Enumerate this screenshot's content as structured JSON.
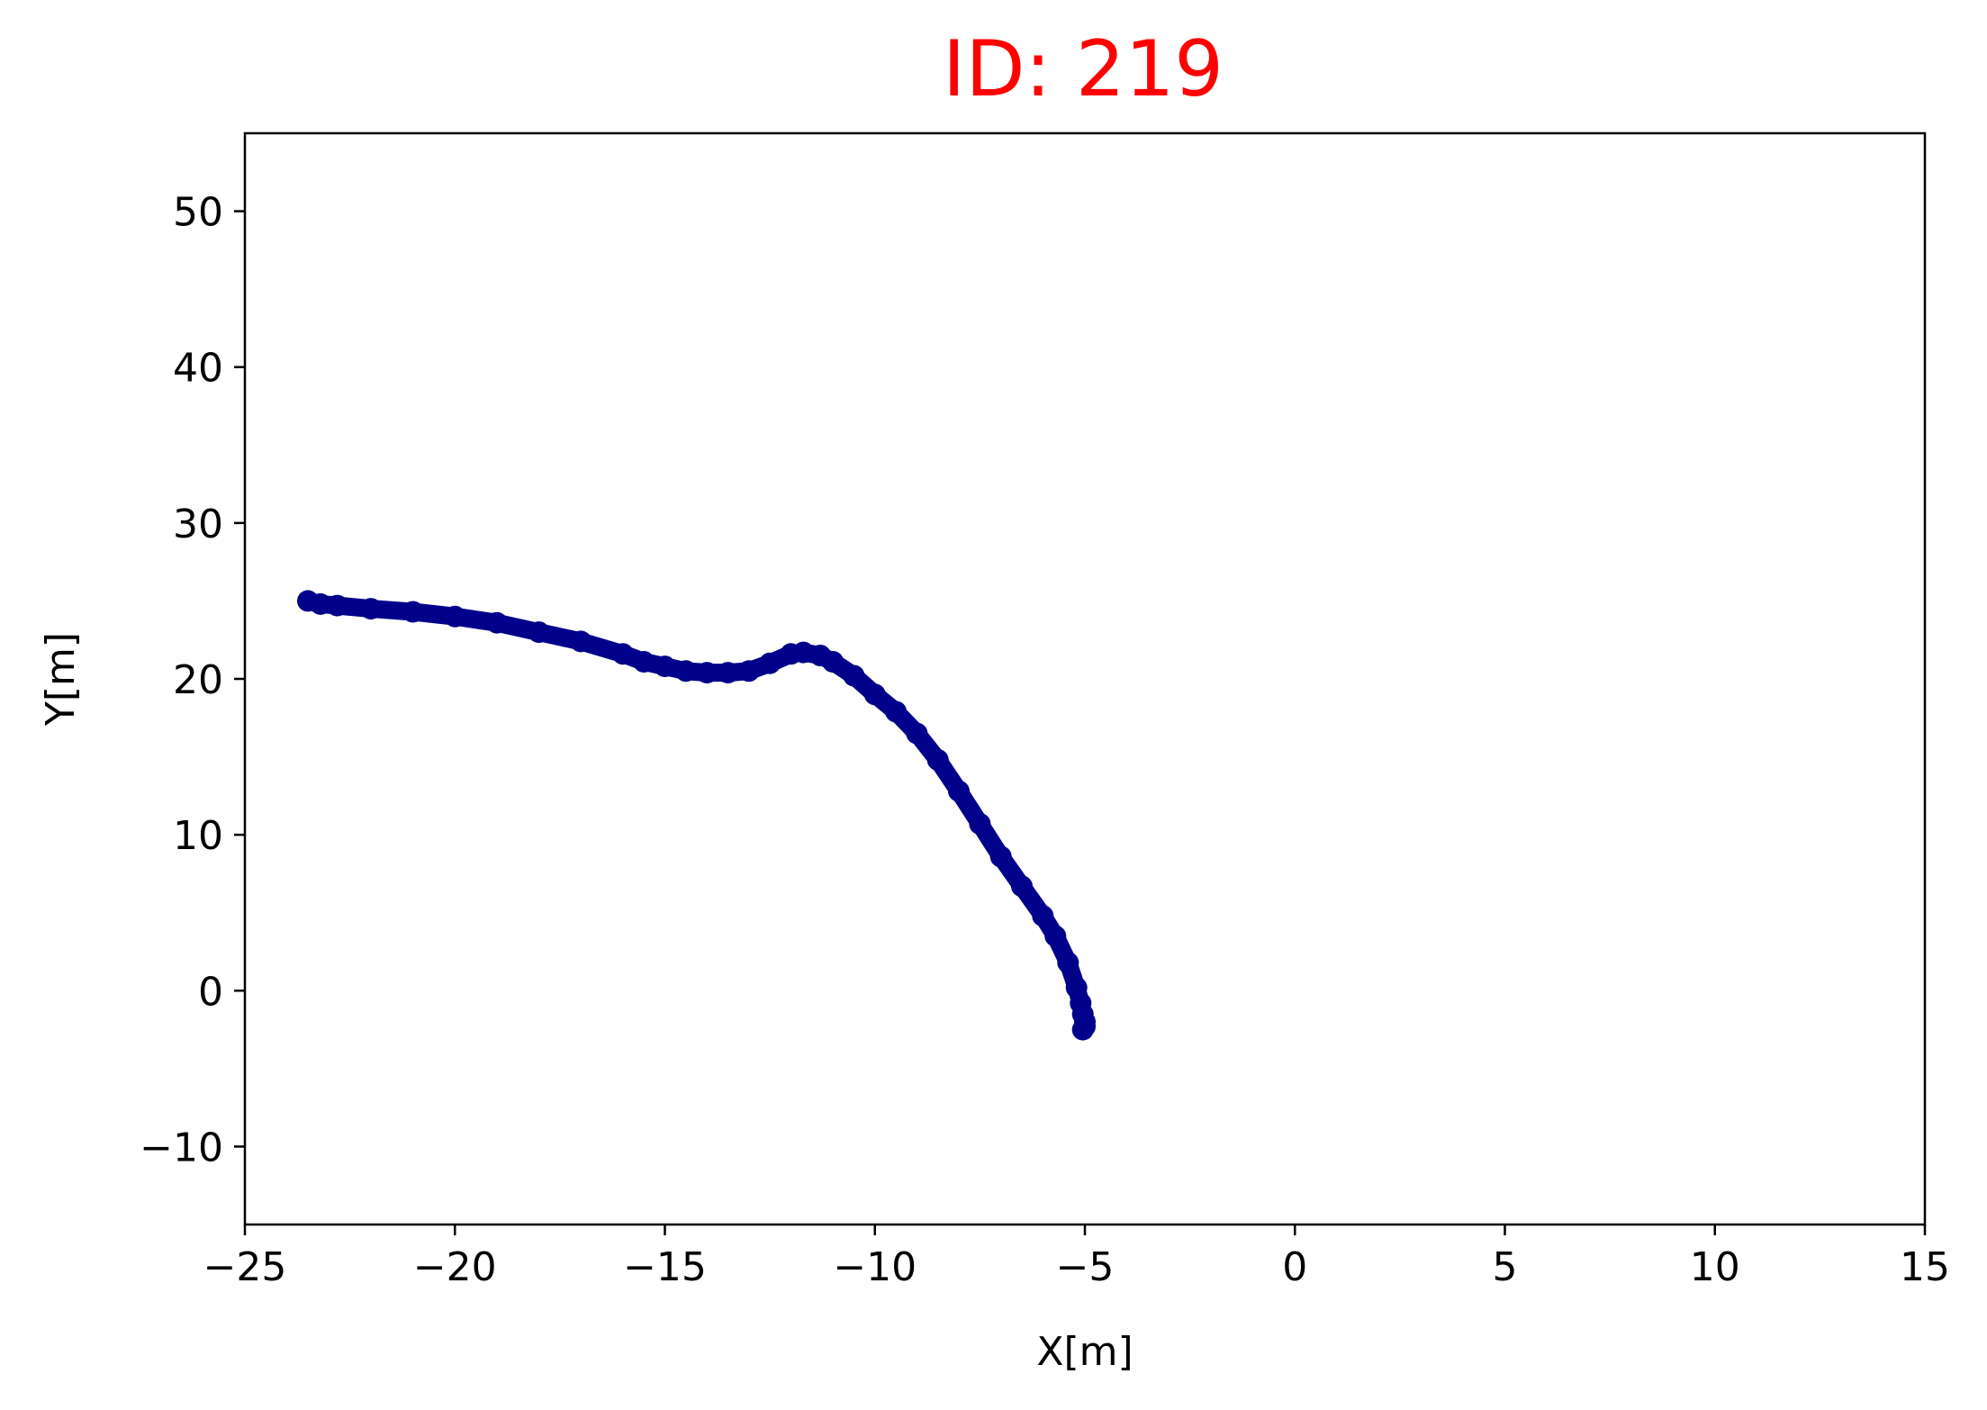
{
  "chart_data": {
    "type": "scatter",
    "title": "ID: 219",
    "title_color": "#ff0000",
    "xlabel": "X[m]",
    "ylabel": "Y[m]",
    "xlim": [
      -25,
      15
    ],
    "ylim": [
      -15,
      55
    ],
    "x_ticks": [
      -25,
      -20,
      -15,
      -10,
      -5,
      0,
      5,
      10,
      15
    ],
    "x_tick_labels": [
      "−25",
      "−20",
      "−15",
      "−10",
      "−5",
      "0",
      "5",
      "10",
      "15"
    ],
    "y_ticks": [
      -10,
      0,
      10,
      20,
      30,
      40,
      50
    ],
    "y_tick_labels": [
      "−10",
      "0",
      "10",
      "20",
      "30",
      "40",
      "50"
    ],
    "grid": false,
    "marker_color": "#00008b",
    "series": [
      {
        "x": [
          -23.5,
          -23.2,
          -22.8,
          -22.0,
          -21.0,
          -20.0,
          -19.0,
          -18.0,
          -17.0,
          -16.0,
          -15.5,
          -15.0,
          -14.5,
          -14.0,
          -13.5,
          -13.0,
          -12.5,
          -12.0,
          -11.7,
          -11.3,
          -11.0,
          -10.5,
          -10.0,
          -9.5,
          -9.0,
          -8.5,
          -8.0,
          -7.5,
          -7.0,
          -6.5,
          -6.0,
          -5.7,
          -5.4,
          -5.2,
          -5.1,
          -5.05,
          -5.0,
          -5.0,
          -5.05
        ],
        "y": [
          25.0,
          24.8,
          24.7,
          24.5,
          24.3,
          24.0,
          23.6,
          23.0,
          22.4,
          21.6,
          21.1,
          20.8,
          20.5,
          20.4,
          20.4,
          20.5,
          21.0,
          21.6,
          21.7,
          21.5,
          21.1,
          20.2,
          19.0,
          17.9,
          16.5,
          14.8,
          12.8,
          10.7,
          8.6,
          6.7,
          4.8,
          3.5,
          1.8,
          0.2,
          -0.8,
          -1.5,
          -2.0,
          -2.3,
          -2.5
        ]
      }
    ]
  }
}
